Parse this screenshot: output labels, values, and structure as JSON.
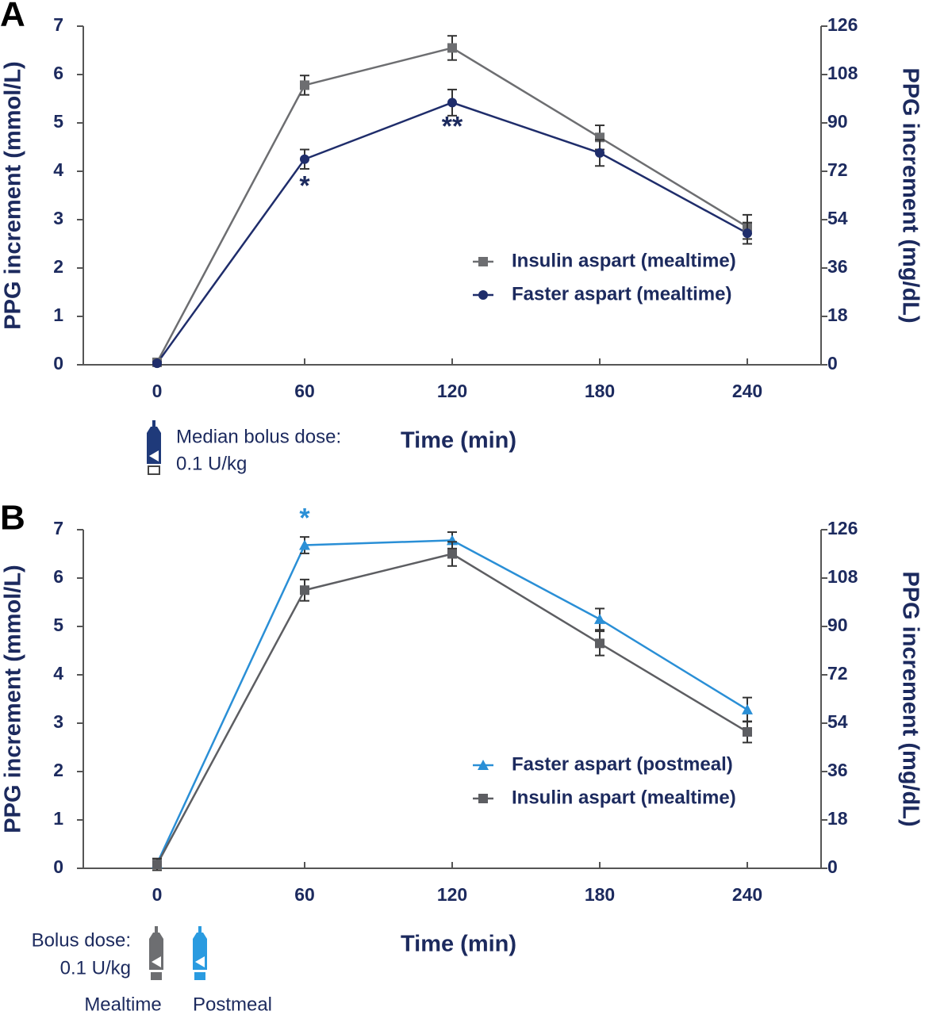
{
  "chart_data": [
    {
      "type": "line",
      "panel_label": "A",
      "x": [
        0,
        60,
        120,
        180,
        240
      ],
      "xlim": [
        -30,
        270
      ],
      "xticks": [
        0,
        60,
        120,
        180,
        240
      ],
      "ylim": [
        0,
        7
      ],
      "yticks": [
        0,
        1,
        2,
        3,
        4,
        5,
        6,
        7
      ],
      "y2lim": [
        0,
        126
      ],
      "y2ticks": [
        0,
        18,
        36,
        54,
        72,
        90,
        108,
        126
      ],
      "xlabel": "Time (min)",
      "ylabel": "PPG increment (mmol/L)",
      "y2label": "PPG increment (mg/dL)",
      "legend": "lower right",
      "series": [
        {
          "name": "Insulin aspart (mealtime)",
          "color": "#6d6e71",
          "marker": "square",
          "values": [
            0.05,
            5.78,
            6.55,
            4.7,
            2.85
          ],
          "errors": [
            0.05,
            0.2,
            0.25,
            0.25,
            0.25
          ]
        },
        {
          "name": "Faster aspart (mealtime)",
          "color": "#1f2d6b",
          "marker": "circle",
          "values": [
            0.03,
            4.25,
            5.42,
            4.38,
            2.72
          ],
          "errors": [
            0.03,
            0.2,
            0.27,
            0.27,
            0.22
          ]
        }
      ],
      "annotations": [
        {
          "text": "*",
          "x": 60,
          "color": "#1c2a5e"
        },
        {
          "text": "**",
          "x": 120,
          "color": "#1c2a5e"
        }
      ],
      "dose_label": [
        "Median bolus dose:",
        "0.1 U/kg"
      ]
    },
    {
      "type": "line",
      "panel_label": "B",
      "x": [
        0,
        60,
        120,
        180,
        240
      ],
      "xlim": [
        -30,
        270
      ],
      "xticks": [
        0,
        60,
        120,
        180,
        240
      ],
      "ylim": [
        0,
        7
      ],
      "yticks": [
        0,
        1,
        2,
        3,
        4,
        5,
        6,
        7
      ],
      "y2lim": [
        0,
        126
      ],
      "y2ticks": [
        0,
        18,
        36,
        54,
        72,
        90,
        108,
        126
      ],
      "xlabel": "Time (min)",
      "ylabel": "PPG increment (mmol/L)",
      "y2label": "PPG increment (mg/dL)",
      "legend": "lower right",
      "series": [
        {
          "name": "Faster aspart (postmeal)",
          "color": "#2a8fd6",
          "marker": "triangle",
          "values": [
            0.1,
            6.68,
            6.78,
            5.15,
            3.28
          ],
          "errors": [
            0.1,
            0.17,
            0.17,
            0.22,
            0.25
          ]
        },
        {
          "name": "Insulin aspart (mealtime)",
          "color": "#5d5e62",
          "marker": "square",
          "values": [
            0.08,
            5.75,
            6.5,
            4.65,
            2.82
          ],
          "errors": [
            0.12,
            0.22,
            0.25,
            0.25,
            0.22
          ]
        }
      ],
      "annotations": [
        {
          "text": "*",
          "x": 60,
          "color": "#2a8fd6"
        }
      ],
      "dose_label": [
        "Bolus dose:",
        "0.1 U/kg"
      ],
      "pen_labels": [
        "Mealtime",
        "Postmeal"
      ]
    }
  ]
}
